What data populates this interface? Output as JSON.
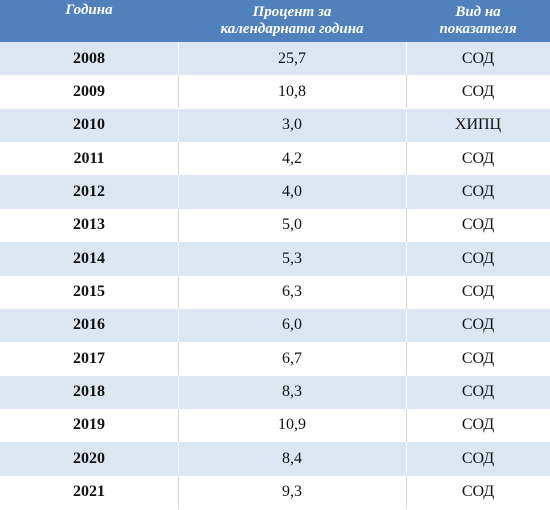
{
  "table": {
    "headers": {
      "year": "Година",
      "percent_line1": "Процент за",
      "percent_line2": "календарната година",
      "type_line1": "Вид на",
      "type_line2": "показателя"
    },
    "rows": [
      {
        "year": "2008",
        "percent": "25,7",
        "type": "СОД"
      },
      {
        "year": "2009",
        "percent": "10,8",
        "type": "СОД"
      },
      {
        "year": "2010",
        "percent": "3,0",
        "type": "ХИПЦ"
      },
      {
        "year": "2011",
        "percent": "4,2",
        "type": "СОД"
      },
      {
        "year": "2012",
        "percent": "4,0",
        "type": "СОД"
      },
      {
        "year": "2013",
        "percent": "5,0",
        "type": "СОД"
      },
      {
        "year": "2014",
        "percent": "5,3",
        "type": "СОД"
      },
      {
        "year": "2015",
        "percent": "6,3",
        "type": "СОД"
      },
      {
        "year": "2016",
        "percent": "6,0",
        "type": "СОД"
      },
      {
        "year": "2017",
        "percent": "6,7",
        "type": "СОД"
      },
      {
        "year": "2018",
        "percent": "8,3",
        "type": "СОД"
      },
      {
        "year": "2019",
        "percent": "10,9",
        "type": "СОД"
      },
      {
        "year": "2020",
        "percent": "8,4",
        "type": "СОД"
      },
      {
        "year": "2021",
        "percent": "9,3",
        "type": "СОД"
      }
    ]
  },
  "colors": {
    "header_bg": "#4f81bd",
    "band_bg": "#dce6f2",
    "text": "#111111"
  }
}
